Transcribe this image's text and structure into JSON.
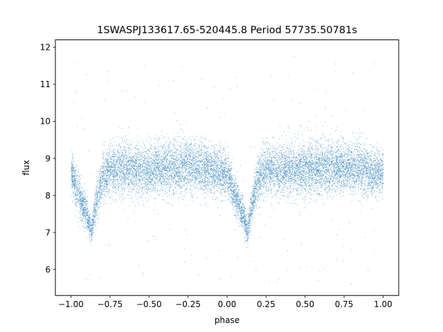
{
  "chart_data": {
    "type": "scatter",
    "title": "1SWASPJ133617.65-520445.8 Period 57735.50781s",
    "xlabel": "phase",
    "ylabel": "flux",
    "xlim": [
      -1.1,
      1.1
    ],
    "ylim": [
      5.3,
      12.2
    ],
    "xticks": [
      -1.0,
      -0.75,
      -0.5,
      -0.25,
      0.0,
      0.25,
      0.5,
      0.75,
      1.0
    ],
    "xtick_labels": [
      "−1.00",
      "−0.75",
      "−0.50",
      "−0.25",
      "0.00",
      "0.25",
      "0.50",
      "0.75",
      "1.00"
    ],
    "yticks": [
      6,
      7,
      8,
      9,
      10,
      11,
      12
    ],
    "ytick_labels": [
      "6",
      "7",
      "8",
      "9",
      "10",
      "11",
      "12"
    ],
    "grid": false,
    "legend": "none",
    "color": "#1f77b4",
    "x": [
      -1.0,
      -0.95,
      -0.9,
      -0.87,
      -0.85,
      -0.8,
      -0.75,
      -0.5,
      -0.25,
      0.0,
      0.05,
      0.1,
      0.13,
      0.15,
      0.2,
      0.25,
      0.5,
      0.75,
      1.0
    ],
    "y": [
      8.6,
      8.0,
      7.5,
      7.0,
      7.6,
      8.5,
      8.7,
      8.7,
      8.8,
      8.6,
      8.0,
      7.5,
      7.0,
      7.6,
      8.5,
      8.7,
      8.7,
      8.8,
      8.6
    ],
    "y_spread": [
      0.6,
      0.5,
      0.45,
      0.35,
      0.45,
      0.6,
      0.7,
      0.7,
      0.7,
      0.6,
      0.5,
      0.45,
      0.35,
      0.45,
      0.6,
      0.7,
      0.7,
      0.7,
      0.6
    ],
    "n_points_per_phase_unit": 6500,
    "n_outliers": 180,
    "outlier_range": [
      5.6,
      11.8
    ]
  }
}
